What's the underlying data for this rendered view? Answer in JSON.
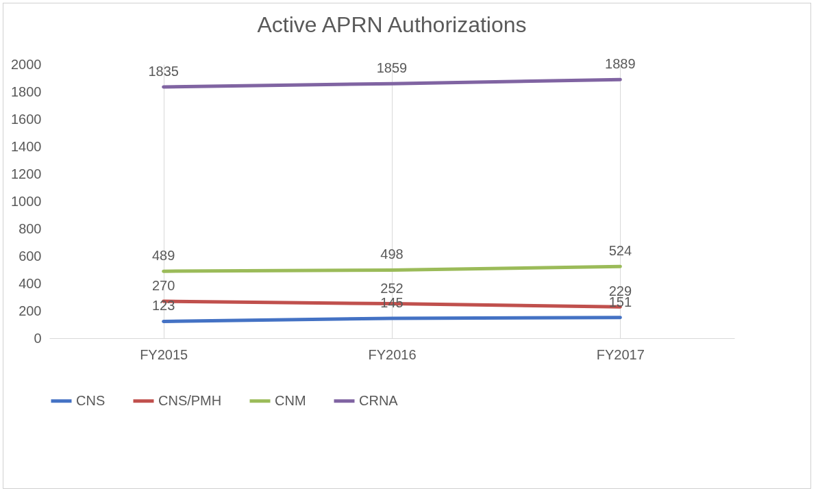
{
  "chart_data": {
    "type": "line",
    "title": "Active APRN Authorizations",
    "categories": [
      "FY2015",
      "FY2016",
      "FY2017"
    ],
    "series": [
      {
        "name": "CNS",
        "color": "#4472c4",
        "values": [
          123,
          145,
          151
        ]
      },
      {
        "name": "CNS/PMH",
        "color": "#c0504d",
        "values": [
          270,
          252,
          229
        ]
      },
      {
        "name": "CNM",
        "color": "#9bbb59",
        "values": [
          489,
          498,
          524
        ]
      },
      {
        "name": "CRNA",
        "color": "#8064a2",
        "values": [
          1835,
          1859,
          1889
        ]
      }
    ],
    "ylim": [
      0,
      2000
    ],
    "yticks": [
      0,
      200,
      400,
      600,
      800,
      1000,
      1200,
      1400,
      1600,
      1800,
      2000
    ],
    "grid": "x",
    "legend": "bottom",
    "data_labels": true,
    "marker": "none",
    "line_style": "solid"
  }
}
